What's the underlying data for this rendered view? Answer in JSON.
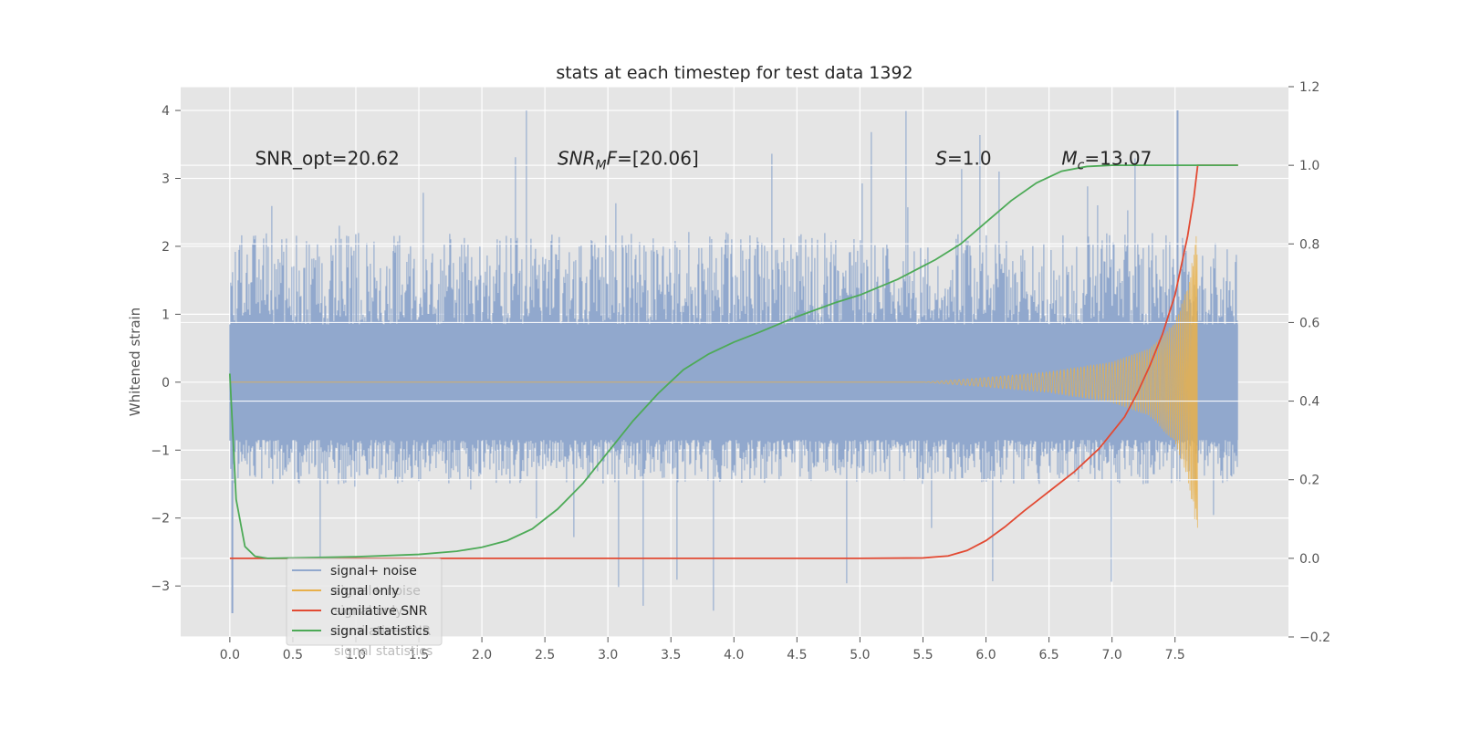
{
  "colors": {
    "background": "#e5e5e5",
    "grid": "#ffffff",
    "noise": "#91a8cd",
    "signal": "#e8b04a",
    "snr": "#e24a33",
    "stats": "#4daa57",
    "text": "#262626",
    "tick": "#555555"
  },
  "chart_data": {
    "type": "line",
    "title": "stats at each timestep for test data 1392",
    "ylabel": "Whitened strain",
    "xlim": [
      -0.39,
      8.4
    ],
    "ylim": [
      -3.75,
      4.35
    ],
    "ylim_right": [
      -0.2,
      1.2
    ],
    "x_ticks": [
      0.0,
      0.5,
      1.0,
      1.5,
      2.0,
      2.5,
      3.0,
      3.5,
      4.0,
      4.5,
      5.0,
      5.5,
      6.0,
      6.5,
      7.0,
      7.5
    ],
    "x_tick_labels": [
      "0.0",
      "0.5",
      "1.0",
      "1.5",
      "2.0",
      "2.5",
      "3.0",
      "3.5",
      "4.0",
      "4.5",
      "5.0",
      "5.5",
      "6.0",
      "6.5",
      "7.0",
      "7.5"
    ],
    "y_ticks": [
      4,
      3,
      2,
      1,
      0,
      -1,
      -2,
      -3
    ],
    "y_tick_labels": [
      "4",
      "3",
      "2",
      "1",
      "0",
      "−1",
      "−2",
      "−3"
    ],
    "y2_ticks": [
      1.2,
      1.0,
      0.8,
      0.6,
      0.4,
      0.2,
      0.0,
      -0.2
    ],
    "y2_tick_labels": [
      "1.2",
      "1.0",
      "0.8",
      "0.6",
      "0.4",
      "0.2",
      "0.0",
      "−0.2"
    ],
    "grid": true,
    "legend_position": "lower-left",
    "annotations": [
      {
        "id": "snr-opt",
        "text": "SNR_opt=20.62",
        "x": 0.2,
        "y": 3.2
      },
      {
        "id": "snr-mf",
        "text": "SNR_MF=[20.06]",
        "base": "SNR",
        "sub": "M",
        "rest": "F=[20.06]",
        "x": 2.6,
        "y": 3.2
      },
      {
        "id": "s-stat",
        "text": "S=1.0",
        "base": "S",
        "rest": "=1.0",
        "x": 5.6,
        "y": 3.2
      },
      {
        "id": "mc",
        "text": "M_c=13.07",
        "base": "M",
        "sub": "c",
        "rest": "=13.07",
        "x": 6.6,
        "y": 3.2
      }
    ],
    "noise_series": {
      "name": "signal+ noise",
      "x_range": [
        0.0,
        8.0
      ],
      "core_amplitude": 0.85,
      "typical_spike": [
        -1.5,
        2.2
      ],
      "max": 4.0,
      "min": -3.4
    },
    "signal_series": {
      "name": "signal only",
      "x_range": [
        0.0,
        7.68
      ],
      "envelope_x": [
        0.0,
        5.5,
        6.0,
        6.5,
        7.0,
        7.3,
        7.5,
        7.6,
        7.68
      ],
      "envelope_y": [
        0.0,
        0.0,
        0.07,
        0.15,
        0.3,
        0.5,
        0.9,
        1.4,
        2.3
      ]
    },
    "series": [
      {
        "name": "cumilative SNR",
        "axis": "right",
        "x": [
          0.0,
          1.0,
          2.0,
          3.0,
          4.0,
          5.0,
          5.5,
          5.7,
          5.85,
          6.0,
          6.15,
          6.3,
          6.5,
          6.7,
          6.9,
          7.0,
          7.1,
          7.2,
          7.3,
          7.4,
          7.5,
          7.6,
          7.65,
          7.68,
          7.69,
          8.0
        ],
        "values": [
          0.0,
          0.0,
          0.0,
          0.0,
          0.0,
          0.0,
          0.001,
          0.006,
          0.02,
          0.045,
          0.08,
          0.12,
          0.17,
          0.22,
          0.28,
          0.32,
          0.36,
          0.42,
          0.49,
          0.57,
          0.67,
          0.82,
          0.92,
          1.0,
          1.0,
          1.0
        ]
      },
      {
        "name": "signal statistics",
        "axis": "right",
        "x": [
          0.0,
          0.05,
          0.12,
          0.2,
          0.3,
          0.5,
          1.0,
          1.5,
          1.8,
          2.0,
          2.2,
          2.4,
          2.6,
          2.8,
          3.0,
          3.2,
          3.4,
          3.6,
          3.8,
          4.0,
          4.2,
          4.5,
          4.8,
          5.0,
          5.3,
          5.6,
          5.8,
          6.0,
          6.2,
          6.4,
          6.6,
          6.8,
          7.0,
          7.2,
          7.4,
          7.6,
          7.68,
          8.0
        ],
        "values": [
          0.47,
          0.15,
          0.03,
          0.005,
          0.0,
          0.001,
          0.004,
          0.01,
          0.018,
          0.028,
          0.045,
          0.075,
          0.125,
          0.19,
          0.27,
          0.35,
          0.42,
          0.48,
          0.52,
          0.55,
          0.575,
          0.615,
          0.65,
          0.67,
          0.71,
          0.76,
          0.8,
          0.855,
          0.91,
          0.955,
          0.985,
          0.997,
          1.0,
          1.0,
          1.0,
          1.0,
          1.0,
          1.0
        ]
      }
    ],
    "legend": [
      {
        "name": "signal+ noise",
        "color": "#91a8cd"
      },
      {
        "name": "signal only",
        "color": "#e8b04a"
      },
      {
        "name": "cumilative SNR",
        "color": "#e24a33"
      },
      {
        "name": "signal statistics",
        "color": "#4daa57"
      }
    ],
    "legend_ghost": [
      "signal+ noise",
      "signal only",
      "cumilative SNR",
      "signal statistics"
    ]
  }
}
